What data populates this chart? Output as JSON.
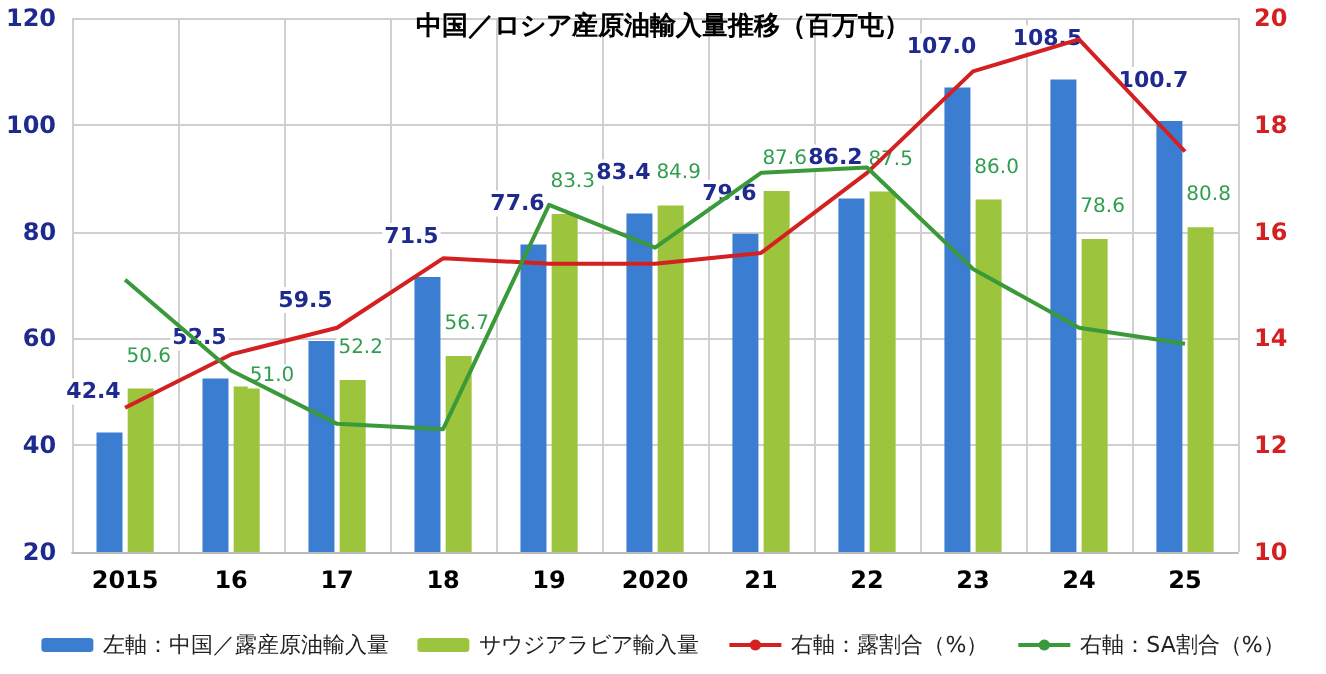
{
  "chart_data": {
    "type": "bar",
    "title": "中国／ロシア産原油輸入量推移（百万屯）",
    "categories": [
      "2015",
      "16",
      "17",
      "18",
      "19",
      "2020",
      "21",
      "22",
      "23",
      "24",
      "25"
    ],
    "series": [
      {
        "name": "左軸：中国／露産原油輸入量",
        "color": "#3b7dd0",
        "values": [
          42.4,
          52.5,
          59.5,
          71.5,
          77.6,
          83.4,
          79.6,
          86.2,
          107.0,
          108.5,
          100.7
        ],
        "value_labels": [
          "42.4",
          "52.5",
          "59.5",
          "71.5",
          "77.6",
          "83.4",
          "79.6",
          "86.2",
          "107.0",
          "108.5",
          "100.7"
        ]
      },
      {
        "name": "サウジアラビア輸入量",
        "color": "#9cc43c",
        "values": [
          50.6,
          51.0,
          52.2,
          56.7,
          83.3,
          84.9,
          87.6,
          87.5,
          86.0,
          78.6,
          80.8
        ],
        "value_labels": [
          "50.6",
          "51.0",
          "52.2",
          "56.7",
          "83.3",
          "84.9",
          "87.6",
          "87.5",
          "86.0",
          "78.6",
          "80.8"
        ]
      },
      {
        "name": "右軸：露割合（%）",
        "type": "line",
        "axis": "y2",
        "color": "#d42020",
        "values": [
          12.7,
          13.7,
          14.2,
          15.5,
          15.4,
          15.4,
          15.6,
          17.1,
          19.0,
          19.6,
          17.5
        ]
      },
      {
        "name": "右軸：SA割合（%）",
        "type": "line",
        "axis": "y2",
        "color": "#3a9a3a",
        "values": [
          15.1,
          13.4,
          12.4,
          12.3,
          16.5,
          15.7,
          17.1,
          17.2,
          15.3,
          14.2,
          13.9
        ]
      }
    ],
    "ylim": [
      20,
      120
    ],
    "yticks": [
      20,
      40,
      60,
      80,
      100,
      120
    ],
    "y2lim": [
      10,
      20
    ],
    "y2ticks": [
      10,
      12,
      14,
      16,
      18,
      20
    ],
    "grid": true,
    "legend": "bottom",
    "marker": "none"
  }
}
